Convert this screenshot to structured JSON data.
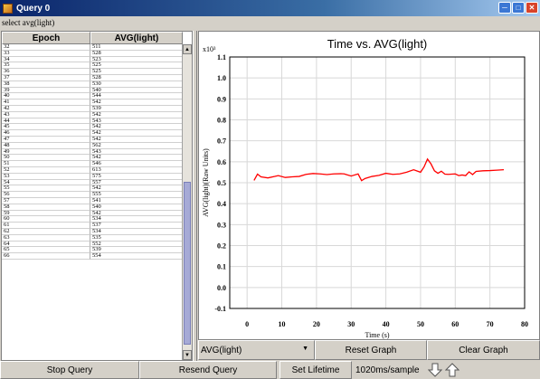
{
  "window": {
    "title": "Query 0"
  },
  "query": {
    "text": "select avg(light)"
  },
  "table": {
    "columns": [
      "Epoch",
      "AVG(light)"
    ],
    "rows": [
      [
        "32",
        "511"
      ],
      [
        "33",
        "528"
      ],
      [
        "34",
        "523"
      ],
      [
        "35",
        "525"
      ],
      [
        "36",
        "525"
      ],
      [
        "37",
        "528"
      ],
      [
        "38",
        "530"
      ],
      [
        "39",
        "540"
      ],
      [
        "40",
        "544"
      ],
      [
        "41",
        "542"
      ],
      [
        "42",
        "539"
      ],
      [
        "43",
        "542"
      ],
      [
        "44",
        "543"
      ],
      [
        "45",
        "542"
      ],
      [
        "46",
        "542"
      ],
      [
        "47",
        "542"
      ],
      [
        "48",
        "562"
      ],
      [
        "49",
        "543"
      ],
      [
        "50",
        "542"
      ],
      [
        "51",
        "546"
      ],
      [
        "52",
        "613"
      ],
      [
        "53",
        "575"
      ],
      [
        "54",
        "557"
      ],
      [
        "55",
        "542"
      ],
      [
        "56",
        "555"
      ],
      [
        "57",
        "541"
      ],
      [
        "58",
        "540"
      ],
      [
        "59",
        "542"
      ],
      [
        "60",
        "534"
      ],
      [
        "61",
        "537"
      ],
      [
        "62",
        "534"
      ],
      [
        "63",
        "535"
      ],
      [
        "64",
        "552"
      ],
      [
        "65",
        "539"
      ],
      [
        "66",
        "554"
      ]
    ]
  },
  "chart_data": {
    "type": "line",
    "title": "Time vs. AVG(light)",
    "xlabel": "Time (s)",
    "ylabel": "AVG(light)(Raw Units)",
    "y_multiplier": "x10³",
    "xlim": [
      -5,
      80
    ],
    "ylim": [
      -0.1,
      1.1
    ],
    "xticks": [
      0,
      10,
      20,
      30,
      40,
      50,
      60,
      70,
      80
    ],
    "yticks": [
      -0.1,
      0.0,
      0.1,
      0.2,
      0.3,
      0.4,
      0.5,
      0.6,
      0.7,
      0.8,
      0.9,
      1.0,
      1.1
    ],
    "grid": true,
    "series": [
      {
        "color": "#ff0000",
        "x": [
          2,
          3,
          4,
          6,
          8,
          9,
          11,
          13,
          15,
          17,
          19,
          21,
          23,
          25,
          27,
          28,
          30,
          32,
          33,
          34,
          36,
          38,
          40,
          42,
          44,
          46,
          48,
          50,
          51,
          52,
          53,
          54,
          55,
          56,
          57,
          58,
          60,
          61,
          62,
          63,
          64,
          65,
          66,
          68,
          70,
          72,
          74
        ],
        "y": [
          0.511,
          0.541,
          0.528,
          0.523,
          0.53,
          0.534,
          0.525,
          0.528,
          0.53,
          0.54,
          0.544,
          0.542,
          0.539,
          0.542,
          0.543,
          0.542,
          0.532,
          0.542,
          0.51,
          0.52,
          0.53,
          0.535,
          0.545,
          0.54,
          0.542,
          0.55,
          0.562,
          0.55,
          0.575,
          0.613,
          0.59,
          0.557,
          0.545,
          0.555,
          0.541,
          0.54,
          0.542,
          0.534,
          0.537,
          0.534,
          0.552,
          0.539,
          0.554,
          0.557,
          0.558,
          0.56,
          0.562
        ]
      }
    ]
  },
  "graph_controls": {
    "selected_field": "AVG(light)",
    "reset_label": "Reset Graph",
    "clear_label": "Clear Graph"
  },
  "bottom_bar": {
    "stop_label": "Stop Query",
    "resend_label": "Resend Query",
    "lifetime_label": "Set Lifetime",
    "rate_text": "1020ms/sample"
  }
}
